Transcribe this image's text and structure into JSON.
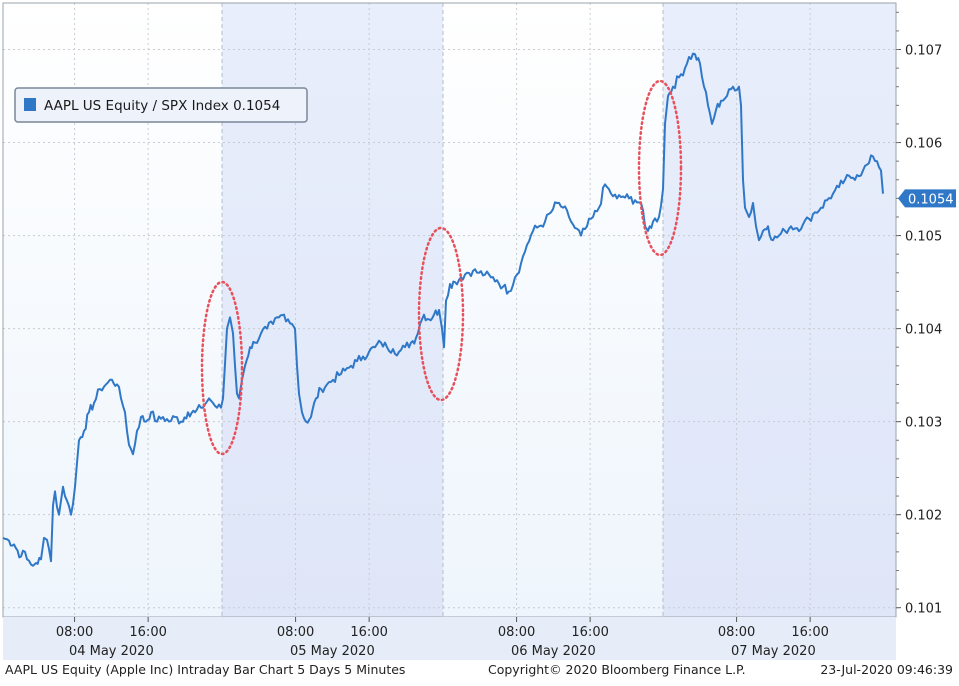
{
  "chart_data": {
    "type": "line",
    "title": "",
    "series": [
      {
        "name": "AAPL US Equity / SPX Index 0.1054",
        "color": "#2f78c8",
        "anchors": [
          [
            0,
            0.10175
          ],
          [
            6,
            0.10172
          ],
          [
            11,
            0.10168
          ],
          [
            18,
            0.10155
          ],
          [
            22,
            0.1016
          ],
          [
            24,
            0.10152
          ],
          [
            30,
            0.10145
          ],
          [
            33,
            0.10148
          ],
          [
            38,
            0.10152
          ],
          [
            41,
            0.10175
          ],
          [
            44,
            0.10173
          ],
          [
            48,
            0.1015
          ],
          [
            50,
            0.1021
          ],
          [
            52,
            0.10225
          ],
          [
            56,
            0.102
          ],
          [
            60,
            0.1023
          ],
          [
            64,
            0.10215
          ],
          [
            68,
            0.102
          ],
          [
            72,
            0.1023
          ],
          [
            76,
            0.1028
          ],
          [
            81,
            0.1029
          ],
          [
            86,
            0.1031
          ],
          [
            91,
            0.1032
          ],
          [
            97,
            0.10335
          ],
          [
            103,
            0.1034
          ],
          [
            109,
            0.10345
          ],
          [
            114,
            0.1034
          ],
          [
            118,
            0.10325
          ],
          [
            122,
            0.1031
          ],
          [
            126,
            0.10275
          ],
          [
            130,
            0.10265
          ],
          [
            134,
            0.1029
          ],
          [
            138,
            0.10305
          ],
          [
            143,
            0.103
          ],
          [
            148,
            0.1031
          ],
          [
            154,
            0.103
          ],
          [
            160,
            0.10305
          ],
          [
            166,
            0.103
          ],
          [
            172,
            0.10305
          ],
          [
            178,
            0.103
          ],
          [
            185,
            0.1031
          ],
          [
            192,
            0.1031
          ],
          [
            198,
            0.10315
          ],
          [
            203,
            0.1032
          ],
          [
            206,
            0.10325
          ],
          [
            210,
            0.1032
          ],
          [
            214,
            0.10315
          ],
          [
            218,
            0.10315
          ],
          [
            220,
            0.10325
          ],
          [
            224,
            0.104
          ],
          [
            227,
            0.10412
          ],
          [
            230,
            0.10395
          ],
          [
            232,
            0.1036
          ],
          [
            234,
            0.1033
          ],
          [
            236,
            0.10325
          ],
          [
            239,
            0.10345
          ],
          [
            242,
            0.1036
          ],
          [
            247,
            0.1038
          ],
          [
            252,
            0.10385
          ],
          [
            258,
            0.10395
          ],
          [
            264,
            0.104
          ],
          [
            270,
            0.10405
          ],
          [
            276,
            0.10412
          ],
          [
            281,
            0.10415
          ],
          [
            285,
            0.1041
          ],
          [
            289,
            0.10405
          ],
          [
            292,
            0.104
          ],
          [
            294,
            0.1036
          ],
          [
            296,
            0.1033
          ],
          [
            299,
            0.1031
          ],
          [
            303,
            0.103
          ],
          [
            308,
            0.10305
          ],
          [
            313,
            0.10325
          ],
          [
            318,
            0.10335
          ],
          [
            324,
            0.1034
          ],
          [
            330,
            0.10345
          ],
          [
            336,
            0.1035
          ],
          [
            342,
            0.10355
          ],
          [
            348,
            0.1036
          ],
          [
            354,
            0.10365
          ],
          [
            360,
            0.1037
          ],
          [
            366,
            0.10375
          ],
          [
            372,
            0.1038
          ],
          [
            378,
            0.10385
          ],
          [
            384,
            0.1038
          ],
          [
            390,
            0.10378
          ],
          [
            396,
            0.10375
          ],
          [
            402,
            0.1038
          ],
          [
            408,
            0.10385
          ],
          [
            413,
            0.1039
          ],
          [
            417,
            0.10405
          ],
          [
            421,
            0.10415
          ],
          [
            426,
            0.1041
          ],
          [
            431,
            0.10415
          ],
          [
            436,
            0.1042
          ],
          [
            439,
            0.104
          ],
          [
            441,
            0.1038
          ],
          [
            443,
            0.1043
          ],
          [
            447,
            0.10448
          ],
          [
            452,
            0.1045
          ],
          [
            458,
            0.10455
          ],
          [
            464,
            0.1046
          ],
          [
            470,
            0.10462
          ],
          [
            476,
            0.1046
          ],
          [
            482,
            0.10458
          ],
          [
            488,
            0.10455
          ],
          [
            494,
            0.10452
          ],
          [
            500,
            0.10445
          ],
          [
            506,
            0.1044
          ],
          [
            512,
            0.10455
          ],
          [
            518,
            0.1047
          ],
          [
            524,
            0.1049
          ],
          [
            530,
            0.10505
          ],
          [
            536,
            0.1051
          ],
          [
            542,
            0.10515
          ],
          [
            548,
            0.10525
          ],
          [
            554,
            0.10535
          ],
          [
            560,
            0.1053
          ],
          [
            566,
            0.1052
          ],
          [
            572,
            0.10508
          ],
          [
            578,
            0.105
          ],
          [
            584,
            0.1051
          ],
          [
            590,
            0.1052
          ],
          [
            596,
            0.1053
          ],
          [
            602,
            0.10555
          ],
          [
            608,
            0.10545
          ],
          [
            614,
            0.1054
          ],
          [
            620,
            0.10542
          ],
          [
            626,
            0.1054
          ],
          [
            632,
            0.10538
          ],
          [
            638,
            0.10535
          ],
          [
            642,
            0.1051
          ],
          [
            645,
            0.10505
          ],
          [
            650,
            0.10515
          ],
          [
            656,
            0.1052
          ],
          [
            660,
            0.1055
          ],
          [
            662,
            0.1062
          ],
          [
            665,
            0.1065
          ],
          [
            670,
            0.1066
          ],
          [
            676,
            0.1067
          ],
          [
            682,
            0.1068
          ],
          [
            686,
            0.10692
          ],
          [
            692,
            0.10695
          ],
          [
            697,
            0.10685
          ],
          [
            701,
            0.1066
          ],
          [
            705,
            0.1064
          ],
          [
            709,
            0.1062
          ],
          [
            713,
            0.10635
          ],
          [
            718,
            0.10645
          ],
          [
            724,
            0.1065
          ],
          [
            730,
            0.1066
          ],
          [
            736,
            0.1066
          ],
          [
            738,
            0.1064
          ],
          [
            740,
            0.1056
          ],
          [
            742,
            0.1053
          ],
          [
            746,
            0.1052
          ],
          [
            750,
            0.10535
          ],
          [
            753,
            0.1051
          ],
          [
            756,
            0.10495
          ],
          [
            760,
            0.10505
          ],
          [
            765,
            0.1051
          ],
          [
            770,
            0.10495
          ],
          [
            776,
            0.105
          ],
          [
            782,
            0.10505
          ],
          [
            788,
            0.1051
          ],
          [
            794,
            0.10508
          ],
          [
            800,
            0.10512
          ],
          [
            806,
            0.10518
          ],
          [
            812,
            0.10525
          ],
          [
            818,
            0.1053
          ],
          [
            824,
            0.10538
          ],
          [
            830,
            0.10545
          ],
          [
            836,
            0.10552
          ],
          [
            842,
            0.1056
          ],
          [
            848,
            0.10562
          ],
          [
            854,
            0.10565
          ],
          [
            860,
            0.1057
          ],
          [
            866,
            0.10578
          ],
          [
            870,
            0.10585
          ],
          [
            874,
            0.1058
          ],
          [
            878,
            0.1057
          ],
          [
            880,
            0.10545
          ]
        ]
      }
    ],
    "x_timeline": {
      "days": [
        "04 May 2020",
        "05 May 2020",
        "06 May 2020",
        "07 May 2020"
      ],
      "time_ticks": [
        "08:00",
        "16:00"
      ]
    },
    "ylim": [
      0.1009,
      0.1075
    ],
    "yticks": [
      "0.101",
      "0.102",
      "0.103",
      "0.104",
      "0.105",
      "0.106",
      "0.107"
    ],
    "last_value_label": "0.1054",
    "legend_position": "top-left",
    "grid": true,
    "annotations": [
      {
        "type": "dotted-ellipse",
        "color": "#e8505b",
        "at_day_boundary": 1
      },
      {
        "type": "dotted-ellipse",
        "color": "#e8505b",
        "at_day_boundary": 2
      },
      {
        "type": "dotted-ellipse",
        "color": "#e8505b",
        "at_day_boundary": 3
      }
    ],
    "footer": {
      "left": "AAPL US Equity (Apple Inc) Intraday Bar Chart 5 Days 5 Minutes",
      "center": "Copyright© 2020 Bloomberg Finance L.P.",
      "right": "23-Jul-2020 09:46:39"
    },
    "colors": {
      "band_light": "#f1f7fd",
      "band_dark": "#e4ebfa",
      "line": "#2f78c8",
      "grid": "#c8ccd2",
      "ellipse": "#e8505b",
      "last_value_bg": "#2f78c8"
    }
  }
}
